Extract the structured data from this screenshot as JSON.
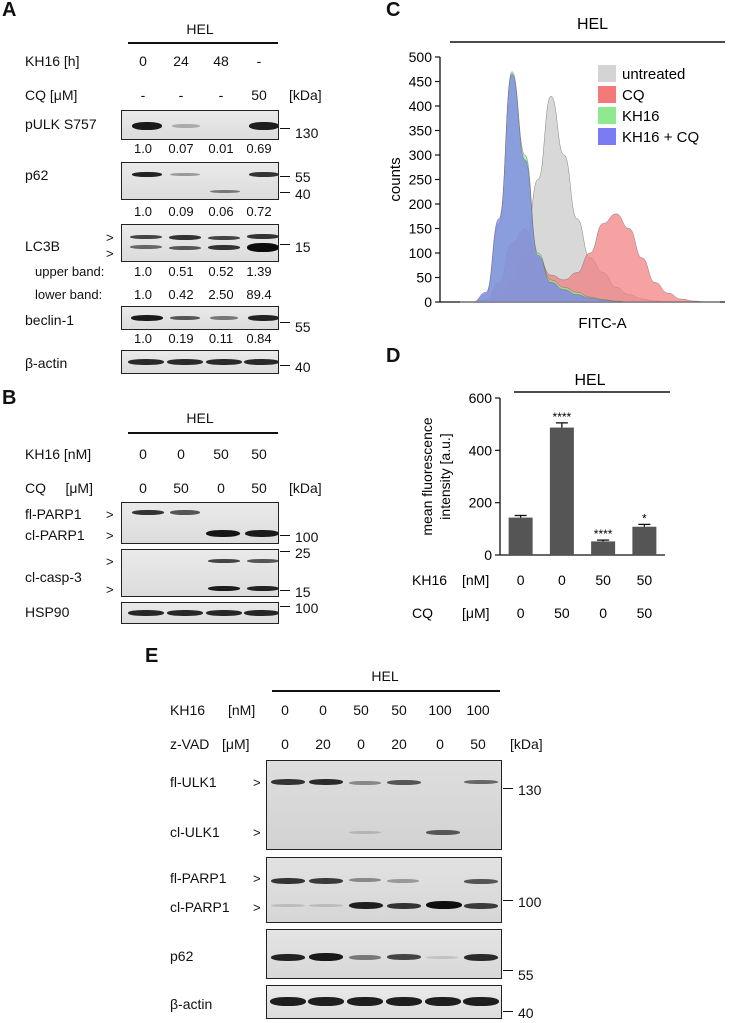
{
  "panels": {
    "A": "A",
    "B": "B",
    "C": "C",
    "D": "D",
    "E": "E"
  },
  "cell_line": "HEL",
  "panelA": {
    "cond1": {
      "label": "KH16 [h]",
      "values": [
        "0",
        "24",
        "48",
        "-"
      ]
    },
    "cond2": {
      "label": "CQ [μM]",
      "values": [
        "-",
        "-",
        "-",
        "50"
      ]
    },
    "kda": "[kDa]",
    "rows": {
      "pulk": {
        "label": "pULK S757",
        "quant": [
          "1.0",
          "0.07",
          "0.01",
          "0.69"
        ],
        "mw": "130"
      },
      "p62": {
        "label": "p62",
        "quant": [
          "1.0",
          "0.09",
          "0.06",
          "0.72"
        ],
        "mw": [
          "55",
          "40"
        ]
      },
      "lc3b": {
        "label": "LC3B",
        "mw": "15",
        "upper": {
          "label": "upper band:",
          "values": [
            "1.0",
            "0.51",
            "0.52",
            "1.39"
          ]
        },
        "lower": {
          "label": "lower band:",
          "values": [
            "1.0",
            "0.42",
            "2.50",
            "89.4"
          ]
        }
      },
      "beclin": {
        "label": "beclin-1",
        "quant": [
          "1.0",
          "0.19",
          "0.11",
          "0.84"
        ],
        "mw": "55"
      },
      "actin": {
        "label": "β-actin",
        "mw": "40"
      }
    }
  },
  "panelB": {
    "cond1": {
      "label": "KH16 [nM]",
      "values": [
        "0",
        "0",
        "50",
        "50"
      ]
    },
    "cond2": {
      "label": "CQ     [μM]",
      "values": [
        "0",
        "50",
        "0",
        "50"
      ]
    },
    "kda": "[kDa]",
    "rows": {
      "flparp": "fl-PARP1",
      "clparp": "cl-PARP1",
      "casp": "cl-casp-3",
      "hsp": "HSP90"
    },
    "mw": {
      "parp": "100",
      "casp_hi": "25",
      "casp_lo": "15",
      "hsp": "100"
    }
  },
  "chart_data": [
    {
      "type": "area",
      "title": "HEL",
      "xlabel": "FITC-A",
      "ylabel": "counts",
      "ylim": [
        0,
        500
      ],
      "yticks": [
        "0",
        "50",
        "100",
        "150",
        "200",
        "250",
        "300",
        "350",
        "400",
        "450",
        "500"
      ],
      "x": [
        0,
        5,
        10,
        15,
        20,
        25,
        30,
        35,
        40,
        45,
        50,
        55,
        60,
        65,
        70,
        75,
        80,
        85,
        90,
        95,
        100
      ],
      "series": [
        {
          "name": "untreated",
          "color": "#d4d4d4",
          "values": [
            0,
            0,
            2,
            8,
            40,
            110,
            250,
            420,
            300,
            170,
            90,
            60,
            30,
            15,
            6,
            2,
            0,
            0,
            0,
            0,
            0
          ]
        },
        {
          "name": "CQ",
          "color": "#f47a7a",
          "values": [
            0,
            0,
            5,
            40,
            120,
            150,
            90,
            55,
            45,
            60,
            100,
            160,
            180,
            150,
            90,
            40,
            18,
            6,
            2,
            0,
            0
          ]
        },
        {
          "name": "KH16",
          "color": "#8fe98f",
          "values": [
            0,
            0,
            15,
            160,
            470,
            300,
            100,
            45,
            30,
            20,
            10,
            5,
            2,
            0,
            0,
            0,
            0,
            0,
            0,
            0,
            0
          ]
        },
        {
          "name": "KH16 + CQ",
          "color": "#7b7bf2",
          "values": [
            0,
            0,
            20,
            170,
            465,
            290,
            95,
            40,
            25,
            15,
            8,
            4,
            1,
            0,
            0,
            0,
            0,
            0,
            0,
            0,
            0
          ]
        }
      ],
      "legend": "top-right"
    },
    {
      "type": "bar",
      "title": "HEL",
      "ylabel": "mean  fluorescence intensity [a.u.]",
      "ylim": [
        0,
        600
      ],
      "yticks": [
        "0",
        "200",
        "400",
        "600"
      ],
      "values": [
        143,
        487,
        52,
        108
      ],
      "errors": [
        8,
        18,
        5,
        9
      ],
      "significance": [
        "",
        "****",
        "****",
        "*"
      ],
      "rows": [
        {
          "label": "KH16",
          "unit": "[nM]",
          "values": [
            "0",
            "0",
            "50",
            "50"
          ]
        },
        {
          "label": "CQ",
          "unit": "[μM]",
          "values": [
            "0",
            "50",
            "0",
            "50"
          ]
        }
      ]
    }
  ],
  "panelE": {
    "cond1": {
      "label": "KH16",
      "unit": "[nM]",
      "values": [
        "0",
        "0",
        "50",
        "50",
        "100",
        "100"
      ]
    },
    "cond2": {
      "label": "z-VAD",
      "unit": "[μM]",
      "values": [
        "0",
        "20",
        "0",
        "20",
        "0",
        "50"
      ]
    },
    "kda": "[kDa]",
    "rows": {
      "flulk": "fl-ULK1",
      "clulk": "cl-ULK1",
      "flparp": "fl-PARP1",
      "clparp": "cl-PARP1",
      "p62": "p62",
      "actin": "β-actin"
    },
    "mw": {
      "ulk": "130",
      "parp": "100",
      "p62": "55",
      "actin": "40"
    }
  },
  "marker": ">"
}
